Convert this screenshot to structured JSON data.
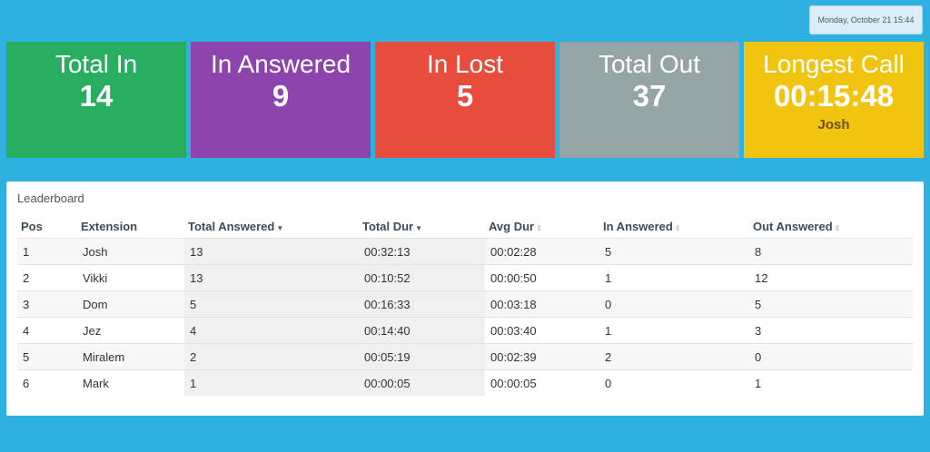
{
  "datetime": "Monday, October 21 15:44",
  "tiles": [
    {
      "label": "Total In",
      "value": "14"
    },
    {
      "label": "In Answered",
      "value": "9"
    },
    {
      "label": "In Lost",
      "value": "5"
    },
    {
      "label": "Total Out",
      "value": "37"
    },
    {
      "label": "Longest Call",
      "value": "00:15:48",
      "sub": "Josh"
    }
  ],
  "colors": {
    "background": "#2eb1e0",
    "total_in": "#27ae60",
    "in_answered": "#8e44ad",
    "in_lost": "#e74c3c",
    "total_out": "#95a5a6",
    "longest_call": "#f1c40f"
  },
  "leaderboard": {
    "title": "Leaderboard",
    "columns": [
      "Pos",
      "Extension",
      "Total Answered",
      "Total Dur",
      "Avg Dur",
      "In Answered",
      "Out Answered"
    ],
    "rows": [
      [
        "1",
        "Josh",
        "13",
        "00:32:13",
        "00:02:28",
        "5",
        "8"
      ],
      [
        "2",
        "Vikki",
        "13",
        "00:10:52",
        "00:00:50",
        "1",
        "12"
      ],
      [
        "3",
        "Dom",
        "5",
        "00:16:33",
        "00:03:18",
        "0",
        "5"
      ],
      [
        "4",
        "Jez",
        "4",
        "00:14:40",
        "00:03:40",
        "1",
        "3"
      ],
      [
        "5",
        "Miralem",
        "2",
        "00:05:19",
        "00:02:39",
        "2",
        "0"
      ],
      [
        "6",
        "Mark",
        "1",
        "00:00:05",
        "00:00:05",
        "0",
        "1"
      ]
    ]
  }
}
